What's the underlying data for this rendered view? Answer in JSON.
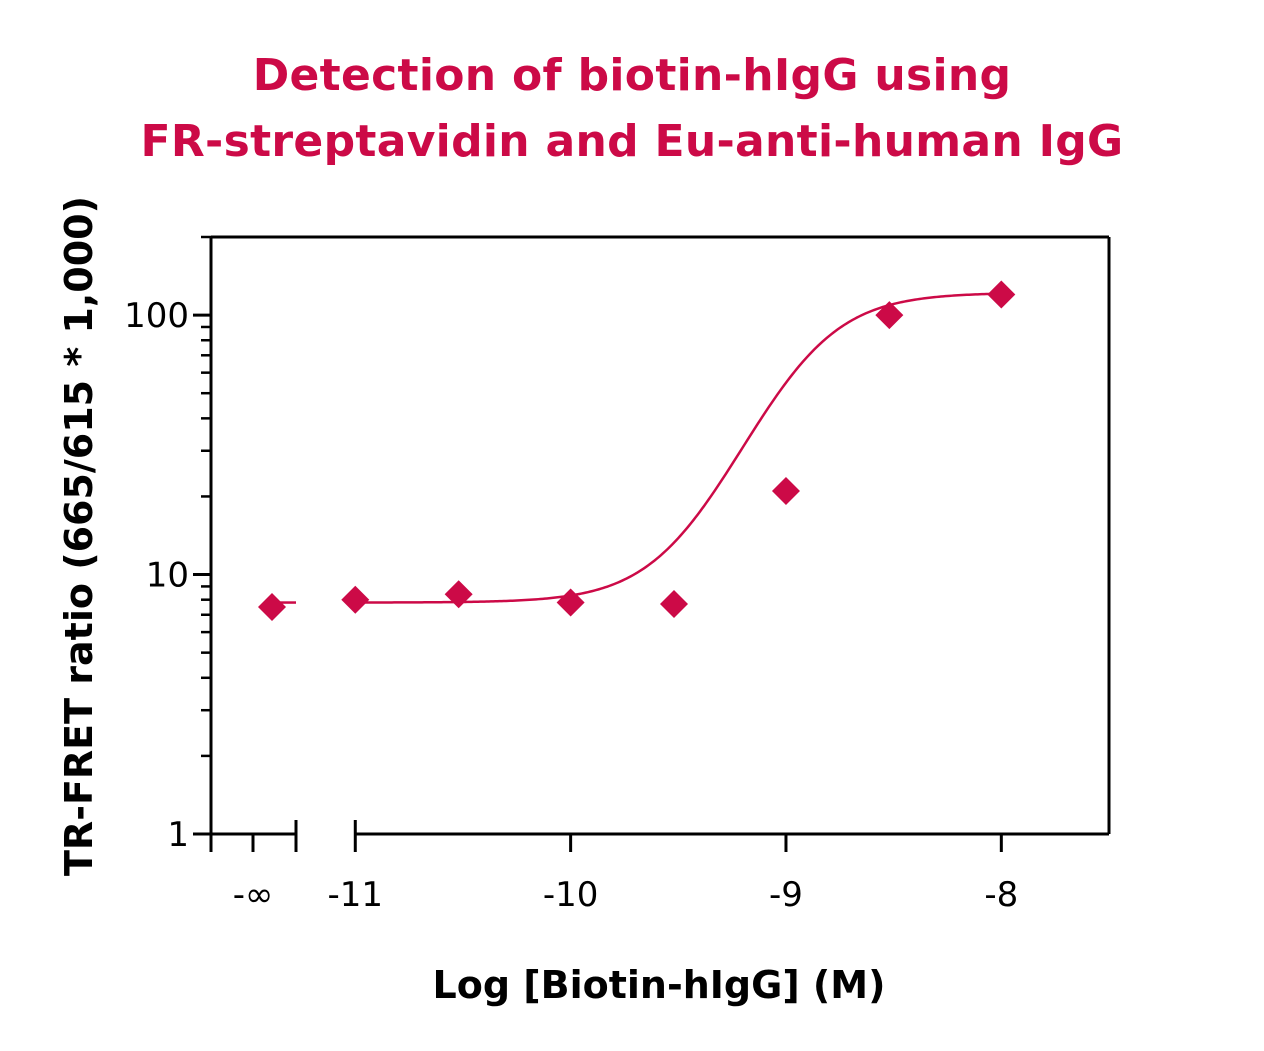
{
  "chart_data": {
    "type": "scatter",
    "title_lines": [
      "Detection of biotin-hIgG using",
      "FR-streptavidin and Eu-anti-human IgG"
    ],
    "xlabel": "Log [Biotin-hIgG] (M)",
    "ylabel": "TR-FRET ratio (665/615 * 1,000)",
    "x_scale": "linear",
    "y_scale": "log",
    "xlim": [
      -11.67,
      -7.5
    ],
    "ylim": [
      1,
      200
    ],
    "x_ticks": [
      {
        "value": null,
        "label": "-∞"
      },
      {
        "value": -11,
        "label": "-11"
      },
      {
        "value": -10,
        "label": "-10"
      },
      {
        "value": -9,
        "label": "-9"
      },
      {
        "value": -8,
        "label": "-8"
      }
    ],
    "y_ticks": [
      {
        "value": 1,
        "label": "1"
      },
      {
        "value": 10,
        "label": "10"
      },
      {
        "value": 100,
        "label": "100"
      }
    ],
    "grid": false,
    "color": "#cc0a47",
    "marker": "diamond",
    "zero_point": {
      "x_label": "-∞",
      "y": 7.5
    },
    "series": [
      {
        "x": [
          -11,
          -10.52,
          -10,
          -9.52,
          -9,
          -8.52,
          -8
        ],
        "y": [
          8.0,
          8.4,
          7.8,
          7.7,
          21,
          100,
          120
        ]
      }
    ],
    "fit": {
      "model": "4-parameter logistic",
      "bottom": 7.8,
      "top": 122,
      "log_ec50": -8.93,
      "hill_slope": 2.2
    }
  }
}
